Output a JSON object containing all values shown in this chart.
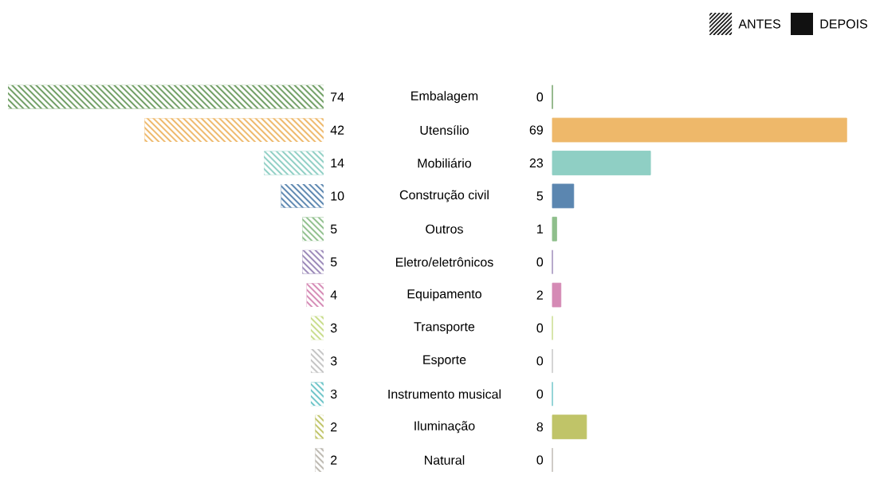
{
  "chart_data": [
    {
      "type": "bar",
      "orientation": "horizontal",
      "legend": "top right",
      "data_labels": true,
      "tick_labels": "y",
      "xlim": [
        74,
        0
      ],
      "categories": [
        "Embalagem",
        "Utensílio",
        "Mobiliário",
        "Construção civil",
        "Outros",
        "Eletro/eletrônicos",
        "Equipamento",
        "Transporte",
        "Esporte",
        "Instrumento musical",
        "Iluminação",
        "Natural"
      ],
      "series": [
        {
          "name": "ANTES",
          "color": "#111111",
          "values": [
            74,
            42,
            14,
            10,
            5,
            5,
            4,
            3,
            3,
            3,
            2,
            2
          ],
          "colors": [
            "#6f9e63",
            "#eeb86a",
            "#8fcfc4",
            "#5b86b0",
            "#8fbf8c",
            "#9a88b8",
            "#d58ab5",
            "#c8dc8a",
            "#c4c4c4",
            "#6cc4c8",
            "#c0c468",
            "#bcb8b0"
          ]
        }
      ]
    },
    {
      "type": "bar",
      "orientation": "horizontal",
      "legend": "top right",
      "data_labels": true,
      "tick_labels": false,
      "categories": [
        null,
        null,
        null,
        null,
        null,
        null,
        null,
        null,
        null,
        null,
        null,
        null
      ],
      "series": [
        {
          "name": "DEPOIS",
          "color": "#111111",
          "values": [
            0,
            69,
            23,
            5,
            1,
            0,
            2,
            0,
            0,
            0,
            8,
            0
          ],
          "colors": [
            "#6f9e63",
            "#eeb86a",
            "#8fcfc4",
            "#5b86b0",
            "#8fbf8c",
            "#9a88b8",
            "#d58ab5",
            "#c8dc8a",
            "#c4c4c4",
            "#6cc4c8",
            "#c0c468",
            "#bcb8b0"
          ]
        }
      ]
    }
  ]
}
